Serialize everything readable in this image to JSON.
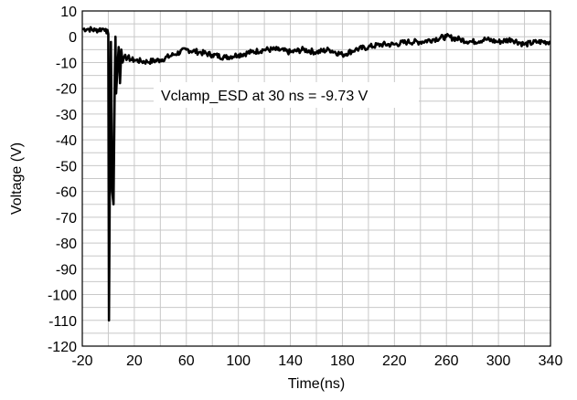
{
  "chart_data": {
    "type": "line",
    "title": "",
    "xlabel": "Time(ns)",
    "ylabel": "Voltage (V)",
    "xlim": [
      -20,
      340
    ],
    "ylim": [
      -120,
      10
    ],
    "grid": true,
    "x_ticks": [
      "-20",
      "20",
      "60",
      "100",
      "140",
      "180",
      "220",
      "260",
      "300",
      "340"
    ],
    "y_ticks": [
      "10",
      "0",
      "-10",
      "-20",
      "-30",
      "-40",
      "-50",
      "-60",
      "-70",
      "-80",
      "-90",
      "-100",
      "-110",
      "-120"
    ],
    "annotation": "Vclamp_ESD at 30 ns = -9.73 V",
    "series": [
      {
        "color": "#000000",
        "x": [
          -20,
          -15,
          -10,
          -5,
          -2,
          0,
          0.5,
          1,
          2,
          3,
          4,
          5,
          5.5,
          6,
          7,
          8,
          9,
          10,
          11,
          12,
          13,
          14,
          15,
          18,
          20,
          25,
          30,
          40,
          50,
          60,
          70,
          80,
          90,
          100,
          110,
          120,
          130,
          140,
          150,
          160,
          170,
          180,
          190,
          200,
          210,
          220,
          230,
          240,
          250,
          260,
          270,
          280,
          290,
          300,
          310,
          320,
          330,
          340
        ],
        "y": [
          3,
          3,
          2.5,
          3,
          3,
          1,
          -110,
          -68,
          -2,
          -60,
          -65,
          -15,
          0,
          -22,
          -12,
          -4,
          -18,
          -5,
          -10,
          -8,
          -7,
          -9,
          -8,
          -9,
          -9,
          -9.5,
          -9.7,
          -9,
          -7,
          -5,
          -6,
          -7,
          -8,
          -7,
          -6,
          -5,
          -5,
          -6,
          -5,
          -6,
          -5,
          -7,
          -5,
          -4,
          -3,
          -3,
          -2,
          -2,
          -1,
          0,
          -1,
          -2,
          -1,
          -2,
          -1,
          -3,
          -2,
          -2
        ]
      }
    ]
  }
}
